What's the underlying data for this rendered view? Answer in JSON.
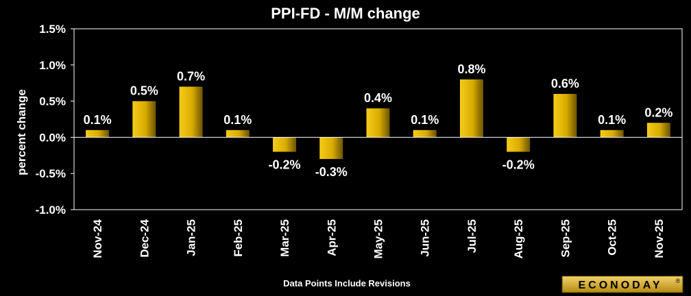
{
  "chart_data": {
    "type": "bar",
    "title": "PPI-FD - M/M change",
    "ylabel": "percent change",
    "xlabel": "",
    "categories": [
      "Nov-24",
      "Dec-24",
      "Jan-25",
      "Feb-25",
      "Mar-25",
      "Apr-25",
      "May-25",
      "Jun-25",
      "Jul-25",
      "Aug-25",
      "Sep-25",
      "Oct-25",
      "Nov-25"
    ],
    "values": [
      0.1,
      0.5,
      0.7,
      0.1,
      -0.2,
      -0.3,
      0.4,
      0.1,
      0.8,
      -0.2,
      0.6,
      0.1,
      0.2
    ],
    "data_labels": [
      "0.1%",
      "0.5%",
      "0.7%",
      "0.1%",
      "-0.2%",
      "-0.3%",
      "0.4%",
      "0.1%",
      "0.8%",
      "-0.2%",
      "0.6%",
      "0.1%",
      "0.2%"
    ],
    "ylim": [
      -1.0,
      1.5
    ],
    "yticks": [
      -1.0,
      -0.5,
      0.0,
      0.5,
      1.0,
      1.5
    ],
    "ytick_labels": [
      "-1.0%",
      "-0.5%",
      "0.0%",
      "0.5%",
      "1.0%",
      "1.5%"
    ],
    "grid": false,
    "legend": "none",
    "bar_color": "#e6b800",
    "bar_color_dark": "#7a6000",
    "background": "#000000",
    "plot_border": "#ffffff"
  },
  "footnote": "Data Points Include Revisions",
  "logo": {
    "text": "ECONODAY",
    "mark": "®"
  }
}
